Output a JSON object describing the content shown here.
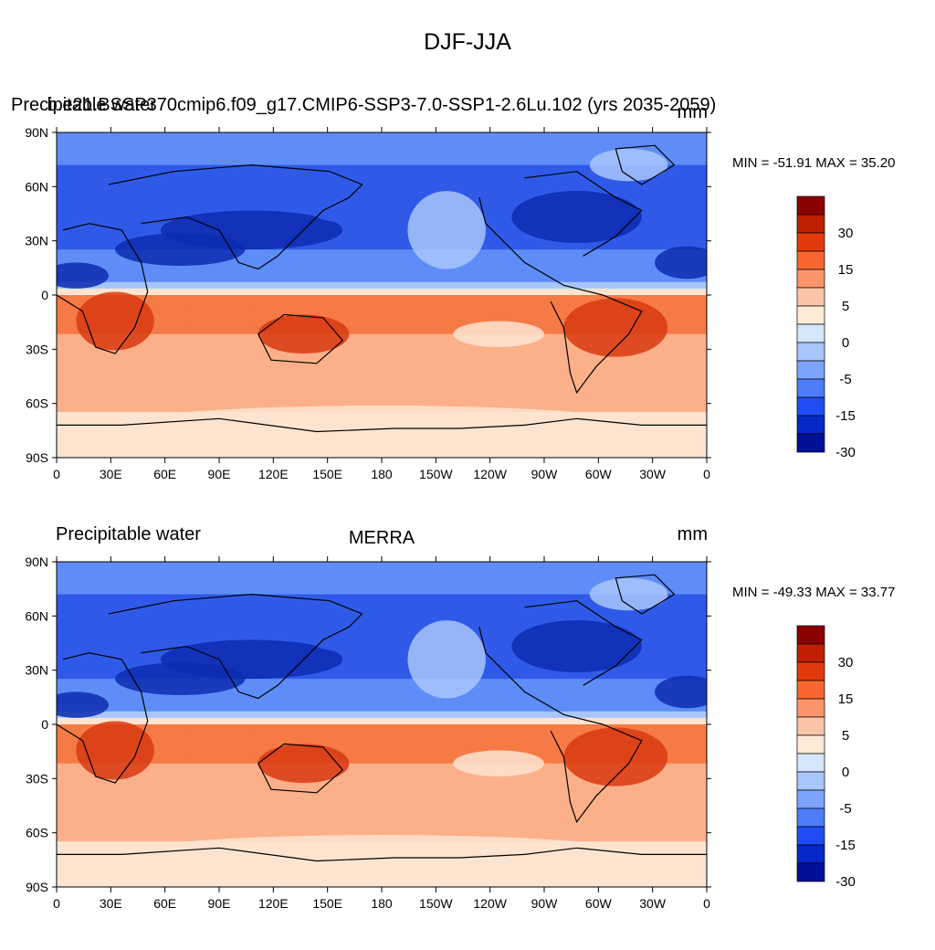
{
  "main_title": "DJF-JJA",
  "panels": [
    {
      "left_title": "Precipitable water",
      "center_title": "b.e21.BSSP370cmip6.f09_g17.CMIP6-SSP3-7.0-SSP1-2.6Lu.102 (yrs 2035-2059)",
      "right_title": "mm",
      "min_max": "MIN = -51.91 MAX =  35.20"
    },
    {
      "left_title": "Precipitable water",
      "center_title": "MERRA",
      "right_title": "mm",
      "min_max": "MIN = -49.33 MAX =  33.77"
    }
  ],
  "axes": {
    "lat_labels": [
      "90N",
      "60N",
      "30N",
      "0",
      "30S",
      "60S",
      "90S"
    ],
    "lon_labels": [
      "0",
      "30E",
      "60E",
      "90E",
      "120E",
      "150E",
      "180",
      "150W",
      "120W",
      "90W",
      "60W",
      "30W",
      "0"
    ]
  },
  "colorbar": {
    "labels": [
      "30",
      "15",
      "5",
      "0",
      "-5",
      "-15",
      "-30"
    ],
    "colors": [
      "#8b0000",
      "#bf2000",
      "#e33a0b",
      "#f8662e",
      "#fc946a",
      "#fdc5a8",
      "#fdebd8",
      "#d6e6fb",
      "#a8c6fb",
      "#7ca4fc",
      "#4e7dfb",
      "#1f4df3",
      "#0528c7",
      "#001097"
    ]
  },
  "palette": {
    "neg_deep": "#0c2bb0",
    "neg_mid": "#2f5ae8",
    "neg_light": "#5e8df8",
    "neg_pale": "#a8c6fb",
    "pos_pale": "#fde4d0",
    "pos_light": "#fbb08a",
    "pos_mid": "#f67a45",
    "pos_deep": "#d83a10"
  }
}
